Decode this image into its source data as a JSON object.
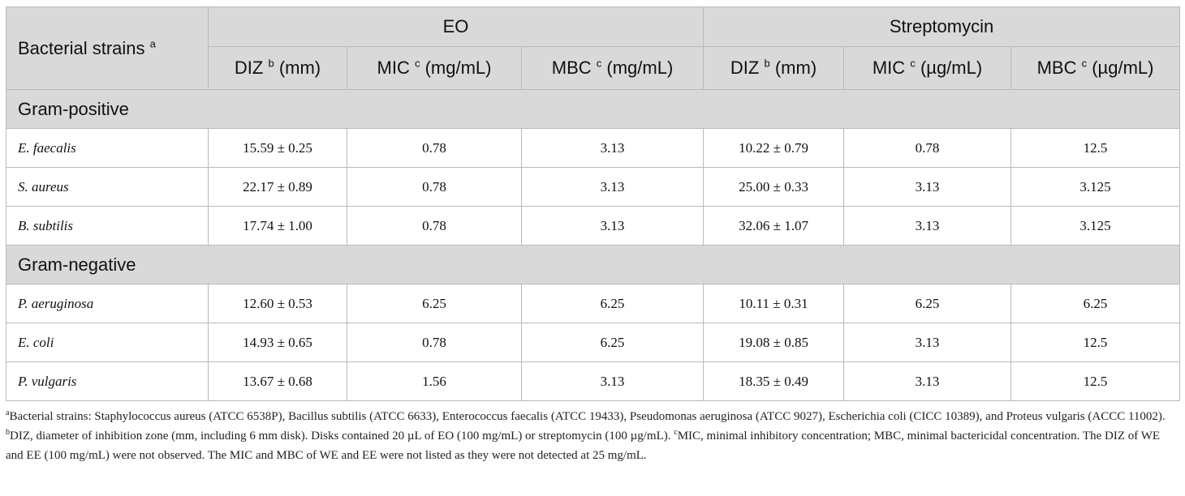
{
  "table": {
    "corner": {
      "label": "Bacterial strains",
      "sup": "a"
    },
    "groups": [
      {
        "label": "EO"
      },
      {
        "label": "Streptomycin"
      }
    ],
    "columns": [
      {
        "pre": "DIZ",
        "sup": "b",
        "post": "(mm)"
      },
      {
        "pre": "MIC",
        "sup": "c",
        "post": "(mg/mL)"
      },
      {
        "pre": "MBC",
        "sup": "c",
        "post": "(mg/mL)"
      },
      {
        "pre": "DIZ",
        "sup": "b",
        "post": "(mm)"
      },
      {
        "pre": "MIC",
        "sup": "c",
        "post": "(µg/mL)"
      },
      {
        "pre": "MBC",
        "sup": "c",
        "post": "(µg/mL)"
      }
    ],
    "sections": [
      {
        "label": "Gram-positive",
        "rows": [
          {
            "strain": "E. faecalis",
            "values": [
              "15.59 ± 0.25",
              "0.78",
              "3.13",
              "10.22 ± 0.79",
              "0.78",
              "12.5"
            ]
          },
          {
            "strain": "S. aureus",
            "values": [
              "22.17 ± 0.89",
              "0.78",
              "3.13",
              "25.00 ± 0.33",
              "3.13",
              "3.125"
            ]
          },
          {
            "strain": "B. subtilis",
            "values": [
              "17.74 ± 1.00",
              "0.78",
              "3.13",
              "32.06 ± 1.07",
              "3.13",
              "3.125"
            ]
          }
        ]
      },
      {
        "label": "Gram-negative",
        "rows": [
          {
            "strain": "P. aeruginosa",
            "values": [
              "12.60 ± 0.53",
              "6.25",
              "6.25",
              "10.11 ± 0.31",
              "6.25",
              "6.25"
            ]
          },
          {
            "strain": "E. coli",
            "values": [
              "14.93 ± 0.65",
              "0.78",
              "6.25",
              "19.08 ± 0.85",
              "3.13",
              "12.5"
            ]
          },
          {
            "strain": "P. vulgaris",
            "values": [
              "13.67 ± 0.68",
              "1.56",
              "3.13",
              "18.35 ± 0.49",
              "3.13",
              "12.5"
            ]
          }
        ]
      }
    ]
  },
  "footnote": {
    "a_sup": "a",
    "a_text": "Bacterial strains: Staphylococcus aureus (ATCC 6538P), Bacillus subtilis (ATCC 6633), Enterococcus faecalis (ATCC 19433), Pseudomonas aeruginosa (ATCC 9027), Escherichia coli (CICC 10389), and Proteus vulgaris (ACCC 11002).",
    "b_sup": "b",
    "b_text": "DIZ, diameter of inhibition zone (mm, including 6 mm disk). Disks contained 20 µL of EO (100 mg/mL) or streptomycin (100 µg/mL).",
    "c_sup": "c",
    "c_text": "MIC, minimal inhibitory concentration; MBC, minimal bactericidal concentration. The DIZ of WE and EE (100 mg/mL) were not observed. The MIC and MBC of WE and EE were not listed as they were not detected at 25 mg/mL."
  }
}
